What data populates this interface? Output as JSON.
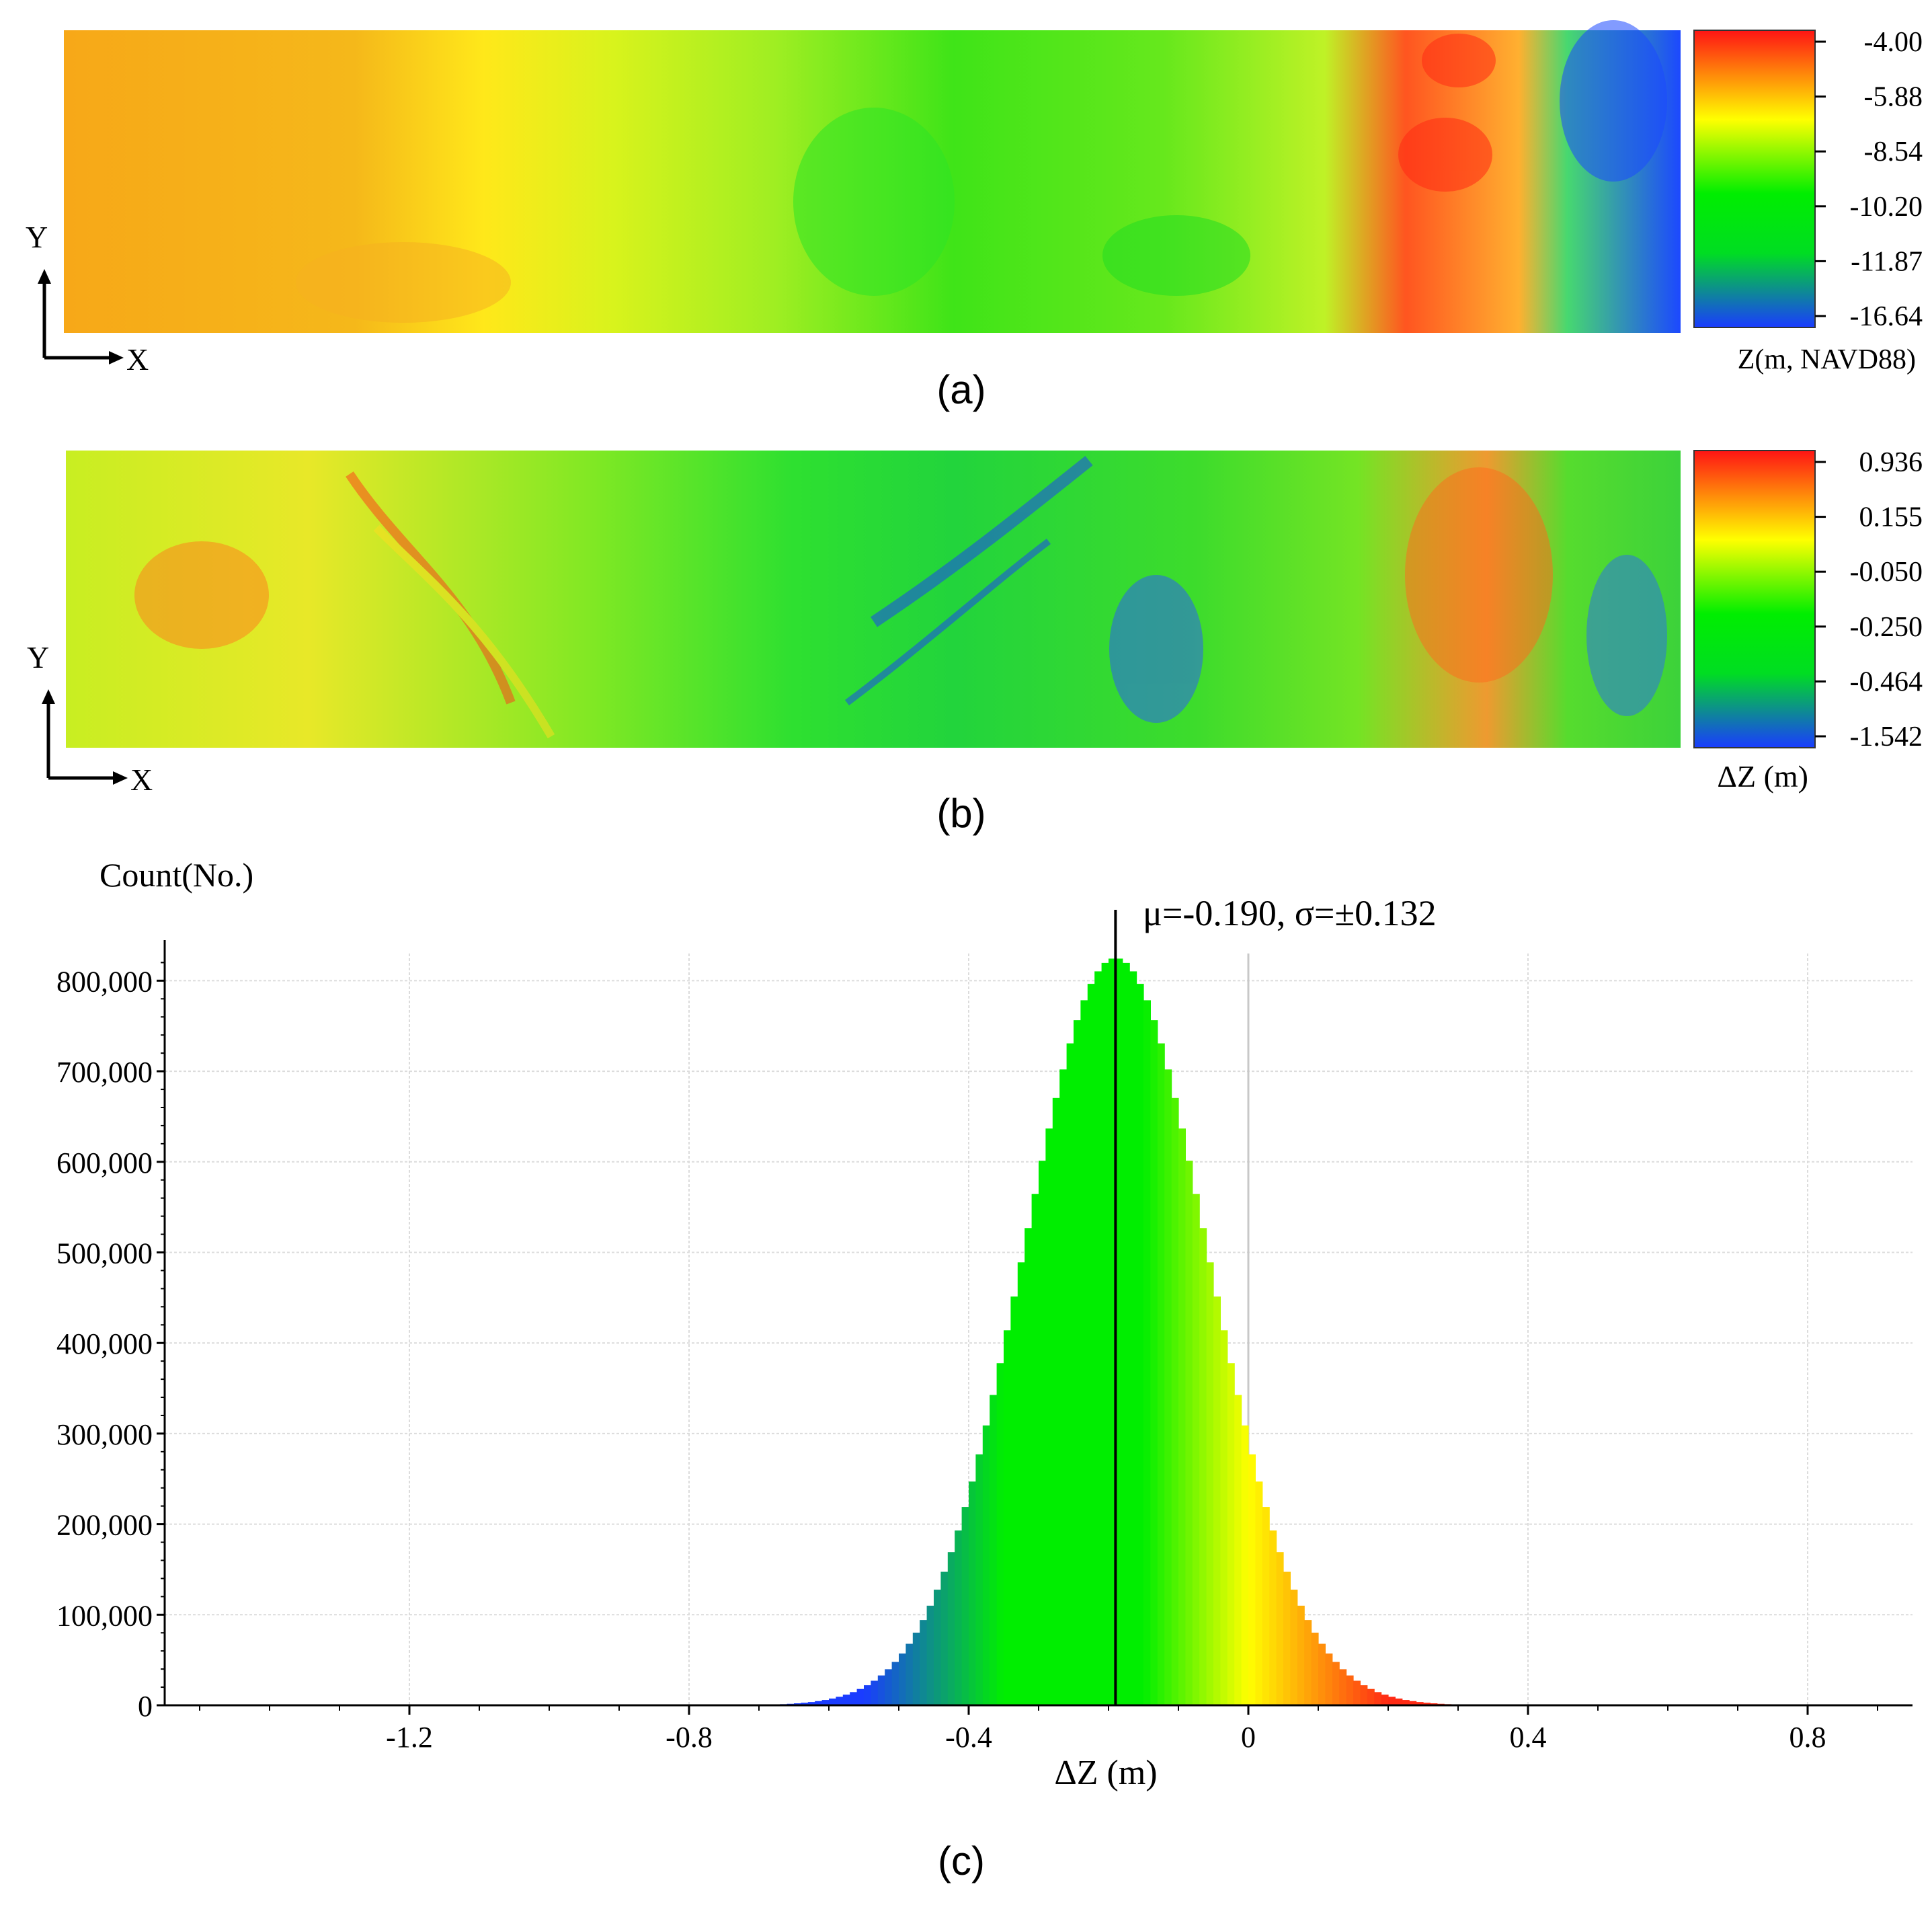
{
  "panel_a": {
    "caption": "(a)",
    "axis_x": "X",
    "axis_y": "Y",
    "colorbar_ticks": [
      "-4.00",
      "-5.88",
      "-8.54",
      "-10.20",
      "-11.87",
      "-16.64"
    ],
    "colorbar_label": "Z(m, NAVD88)",
    "colors": [
      "#ff2a14",
      "#ffff00",
      "#00ee00",
      "#1a3cff"
    ]
  },
  "panel_b": {
    "caption": "(b)",
    "axis_x": "X",
    "axis_y": "Y",
    "colorbar_ticks": [
      "0.936",
      "0.155",
      "-0.050",
      "-0.250",
      "-0.464",
      "-1.542"
    ],
    "colorbar_label": "ΔZ (m)",
    "colors": [
      "#ff2a14",
      "#ffff00",
      "#00ee00",
      "#1a3cff"
    ]
  },
  "panel_c": {
    "caption": "(c)"
  },
  "chart_data": {
    "type": "bar",
    "title": "",
    "xlabel": "ΔZ (m)",
    "ylabel": "Count(No.)",
    "xlim": [
      -1.55,
      0.95
    ],
    "ylim": [
      0,
      830000
    ],
    "x_ticks": [
      -1.2,
      -0.8,
      -0.4,
      0,
      0.4,
      0.8
    ],
    "x_tick_labels": [
      "-1.2",
      "-0.8",
      "-0.4",
      "0",
      "0.4",
      "0.8"
    ],
    "y_ticks": [
      0,
      100000,
      200000,
      300000,
      400000,
      500000,
      600000,
      700000,
      800000
    ],
    "y_tick_labels": [
      "0",
      "100,000",
      "200,000",
      "300,000",
      "400,000",
      "500,000",
      "600,000",
      "700,000",
      "800,000"
    ],
    "grid": true,
    "distribution": {
      "mean": -0.19,
      "std": 0.132,
      "peak_count": 825000
    },
    "bin_width": 0.01,
    "bin_range": [
      -0.8,
      0.45
    ],
    "mean_line_x": -0.19,
    "annotation": "μ=-0.190, σ=±0.132",
    "colors": [
      "#1a3cff",
      "#00ee00",
      "#ffff00",
      "#ff2a14"
    ]
  }
}
